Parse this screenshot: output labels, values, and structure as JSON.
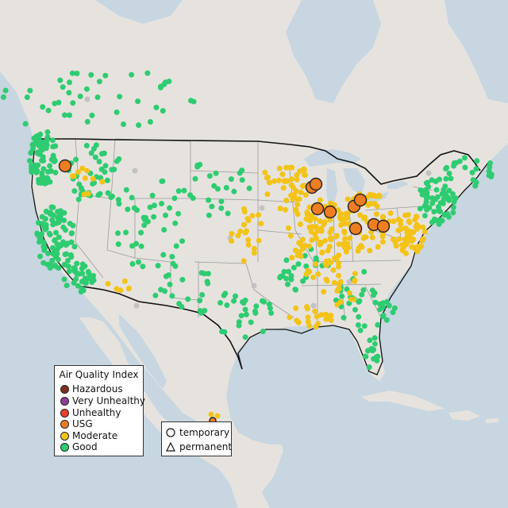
{
  "legend": {
    "title": "Air Quality Index",
    "categories": [
      {
        "label": "Hazardous",
        "color": "#7e2d20"
      },
      {
        "label": "Very Unhealthy",
        "color": "#8f3f97"
      },
      {
        "label": "Unhealthy",
        "color": "#e8412e"
      },
      {
        "label": "USG",
        "color": "#ef7d22"
      },
      {
        "label": "Moderate",
        "color": "#f3c318"
      },
      {
        "label": "Good",
        "color": "#2ecc71"
      }
    ]
  },
  "monitor_type_legend": {
    "items": [
      {
        "label": "temporary",
        "symbol": "circle-icon"
      },
      {
        "label": "permanent",
        "symbol": "triangle-icon"
      }
    ]
  },
  "colors": {
    "land": "#e6e3df",
    "water": "#c7d6e0",
    "good": "#2ecc71",
    "moderate": "#f3c318",
    "usg": "#ef7d22",
    "no_data": "#c2c2c2"
  }
}
